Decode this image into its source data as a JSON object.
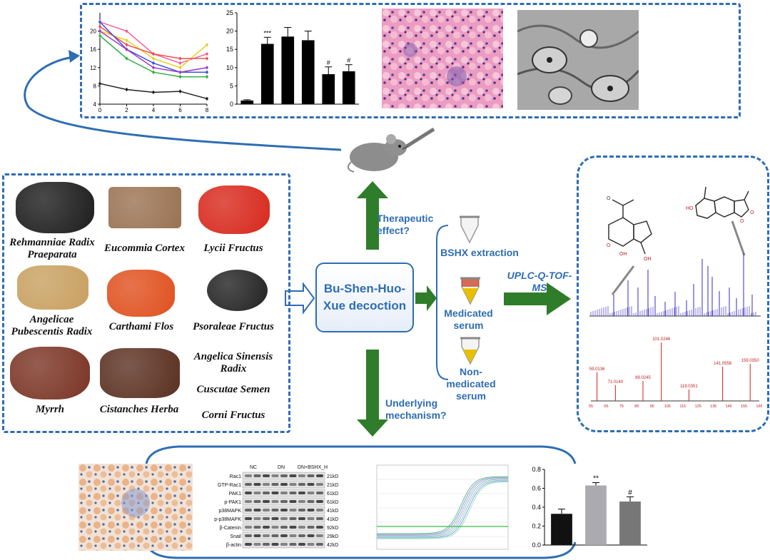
{
  "herbs": [
    {
      "label": "Rehmanniae Radix Praeparata",
      "color": "#1c1c1c"
    },
    {
      "label": "Eucommia Cortex",
      "color": "#9a7252"
    },
    {
      "label": "Lycii Fructus",
      "color": "#d8281c"
    },
    {
      "label": "Angelicae Pubescentis Radix",
      "color": "#c8a060"
    },
    {
      "label": "Carthami Flos",
      "color": "#e0501e"
    },
    {
      "label": "Psoraleae Fructus",
      "color": "#222222"
    },
    {
      "label": "Myrrh",
      "color": "#7a3424"
    },
    {
      "label": "Cistanches Herba",
      "color": "#5a3020"
    }
  ],
  "herbs_text_only": [
    {
      "label": "Angelica Sinensis Radix"
    },
    {
      "label": "Cuscutae Semen"
    },
    {
      "label": "Corni Fructus"
    }
  ],
  "center": {
    "decoction": "Bu-Shen-Huo-Xue decoction",
    "therapeutic": "Therapeutic effect?",
    "mechanism": "Underlying mechanism?"
  },
  "samples": {
    "extraction": "BSHX extraction",
    "medicated": "Medicated serum",
    "non_medicated": "Non-medicated serum"
  },
  "ms_method": "UPLC-Q-TOF-MS",
  "line_chart": {
    "x_ticks": [
      "0",
      "2",
      "4",
      "6",
      "8"
    ],
    "y_ticks": [
      "4",
      "8",
      "12",
      "16",
      "20"
    ]
  },
  "bar_chart_1": {
    "y_ticks": [
      "0",
      "5",
      "10",
      "15",
      "20",
      "25"
    ],
    "annotations": [
      "***",
      "#",
      "#"
    ]
  },
  "western_blot": {
    "groups": [
      "NC",
      "DN",
      "DN+BSHX_H"
    ],
    "rows": [
      {
        "protein": "Rac1",
        "size": "21kD"
      },
      {
        "protein": "GTP-Rac1",
        "size": "21kD"
      },
      {
        "protein": "PAK1",
        "size": "61kD"
      },
      {
        "protein": "p-PAK1",
        "size": "61kD"
      },
      {
        "protein": "p38MAPK",
        "size": "41kD"
      },
      {
        "protein": "p-p38MAPK",
        "size": "41kD"
      },
      {
        "protein": "β-Catenin",
        "size": "92kD"
      },
      {
        "protein": "Snail",
        "size": "29kD"
      },
      {
        "protein": "β-actin",
        "size": "42kD"
      }
    ]
  },
  "bar_chart_2": {
    "y_ticks": [
      "0.0",
      "0.2",
      "0.4",
      "0.6",
      "0.8"
    ],
    "annotations": [
      "**",
      "#"
    ]
  },
  "ms_spectrum": {
    "peak_labels": [
      "59.0136",
      "71.0140",
      "89.0245",
      "101.0246",
      "119.0351",
      "141.0558",
      "159.0350"
    ],
    "x_ticks": [
      "55",
      "60",
      "65",
      "70",
      "75",
      "80",
      "85",
      "90",
      "95",
      "100",
      "105",
      "110",
      "115",
      "120",
      "125",
      "130",
      "135",
      "140",
      "145",
      "150",
      "155",
      "160",
      "165"
    ]
  },
  "chart_data": [
    {
      "type": "line",
      "x": [
        0,
        2,
        4,
        6,
        8
      ],
      "ylim": [
        4,
        24
      ],
      "series": [
        {
          "values": [
            22,
            20,
            15,
            13,
            15
          ],
          "color": "#f060a0"
        },
        {
          "values": [
            20,
            18,
            14,
            12,
            17
          ],
          "color": "#e8d020"
        },
        {
          "values": [
            21,
            17,
            15,
            14,
            14
          ],
          "color": "#f05050"
        },
        {
          "values": [
            19,
            14,
            11,
            10,
            10
          ],
          "color": "#30b040"
        },
        {
          "values": [
            22,
            16,
            13,
            11,
            11
          ],
          "color": "#4050e0"
        },
        {
          "values": [
            20,
            16,
            12,
            11,
            12
          ],
          "color": "#a040c0"
        },
        {
          "values": [
            8.5,
            7.2,
            6.6,
            6.8,
            5.2
          ],
          "color": "#222222"
        }
      ]
    },
    {
      "type": "bar",
      "ylim": [
        0,
        25
      ],
      "values": [
        1,
        16.5,
        18.5,
        17.5,
        8.2,
        9
      ],
      "errors": [
        0.2,
        1.8,
        2.5,
        2.5,
        2,
        1.8
      ]
    },
    {
      "type": "bar",
      "ylim": [
        0,
        0.8
      ],
      "values": [
        0.33,
        0.63,
        0.46
      ],
      "errors": [
        0.05,
        0.03,
        0.05
      ],
      "colors": [
        "#111111",
        "#aaaab0",
        "#777777"
      ]
    }
  ]
}
